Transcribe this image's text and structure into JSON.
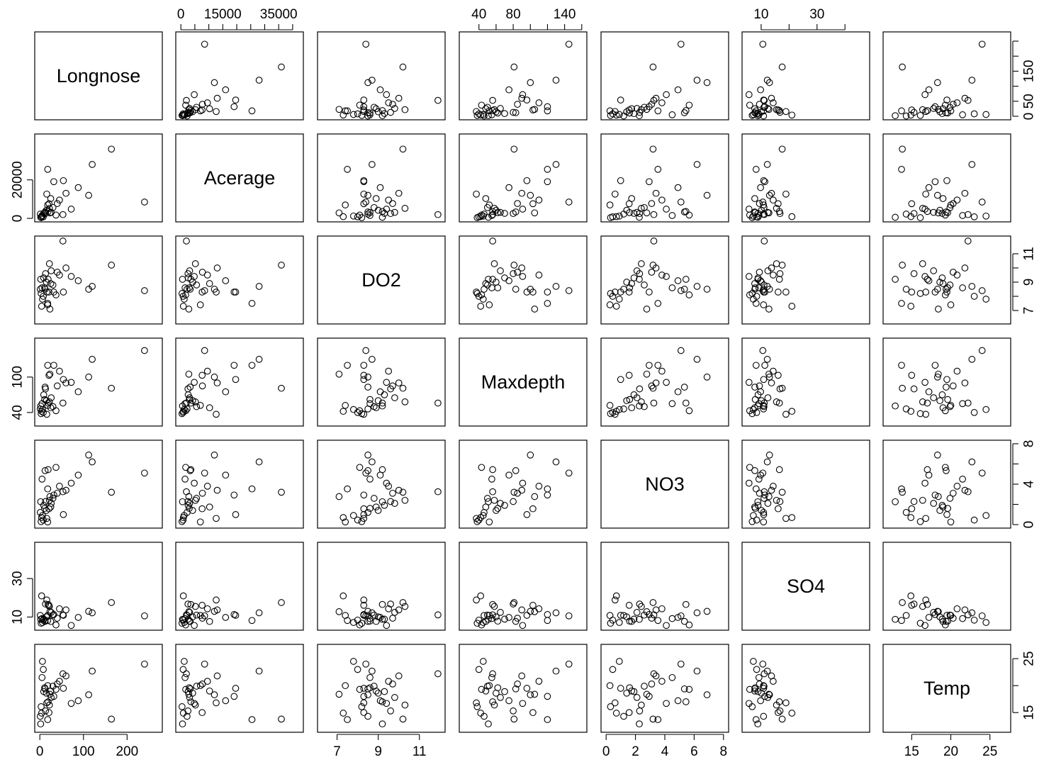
{
  "chart_data": {
    "type": "scatter",
    "variables": [
      "Longnose",
      "Acerage",
      "DO2",
      "Maxdepth",
      "NO3",
      "SO4",
      "Temp"
    ],
    "ranges": {
      "Longnose": [
        0,
        269
      ],
      "Acerage": [
        0,
        42000
      ],
      "DO2": [
        6.3,
        12.0
      ],
      "Maxdepth": [
        23,
        160
      ],
      "NO3": [
        0,
        8
      ],
      "SO4": [
        5,
        47
      ],
      "Temp": [
        12,
        27
      ]
    },
    "ticks": {
      "Longnose": [
        0,
        100,
        200
      ],
      "Acerage": [
        0,
        20000
      ],
      "DO2": [
        7,
        9,
        11
      ],
      "Maxdepth": [
        40,
        100
      ],
      "NO3": [
        0,
        2,
        4,
        6,
        8
      ],
      "SO4": [
        10,
        30
      ],
      "Temp": [
        15,
        20,
        25
      ]
    },
    "top_ticks": {
      "Acerage": {
        "labels": [
          "0",
          "15000",
          "35000"
        ],
        "values": [
          0,
          15000,
          35000
        ],
        "minor": [
          5000,
          10000,
          20000,
          25000,
          30000,
          40000
        ]
      },
      "Maxdepth": {
        "labels": [
          "40",
          "80",
          "140"
        ],
        "values": [
          40,
          80,
          140
        ],
        "minor": [
          60,
          100,
          120,
          160
        ]
      },
      "SO4": {
        "labels": [
          "10",
          "30"
        ],
        "values": [
          10,
          30
        ],
        "minor": [
          20,
          40
        ]
      }
    },
    "tick_label_text": {
      "bottom": {
        "Longnose": [
          "0",
          "100",
          "200"
        ],
        "DO2": [
          "7",
          "9",
          "11"
        ],
        "NO3": [
          "0",
          "2",
          "4",
          "6",
          "8"
        ],
        "Temp": [
          "15",
          "20",
          "25"
        ]
      },
      "left": {
        "Acerage": [
          "0",
          "20000"
        ],
        "Maxdepth": [
          "40",
          "100"
        ],
        "SO4": [
          "10",
          "30"
        ]
      },
      "right": {
        "Longnose": [
          "0",
          "50",
          "150"
        ],
        "DO2": [
          "7",
          "9",
          "11"
        ],
        "NO3": [
          "0",
          "4",
          "8"
        ],
        "Temp": [
          "15",
          "25"
        ]
      }
    },
    "observations": [
      [
        13,
        2528,
        9.6,
        80,
        2.28,
        16.75,
        15.3
      ],
      [
        12,
        3333,
        8.5,
        83,
        5.34,
        7.74,
        19.4
      ],
      [
        54,
        19611,
        8.3,
        96,
        0.99,
        10.92,
        19.5
      ],
      [
        19,
        3570,
        9.2,
        56,
        5.44,
        16.53,
        17.0
      ],
      [
        37,
        1722,
        8.1,
        43,
        5.66,
        5.91,
        19.3
      ],
      [
        2,
        583,
        9.2,
        51,
        2.26,
        8.81,
        12.9
      ],
      [
        72,
        4790,
        9.4,
        91,
        4.1,
        5.65,
        16.7
      ],
      [
        164,
        35971,
        10.2,
        81,
        3.2,
        17.53,
        13.8
      ],
      [
        18,
        25440,
        7.5,
        120,
        3.53,
        8.2,
        13.7
      ],
      [
        1,
        2217,
        8.5,
        46,
        1.2,
        10.85,
        14.3
      ],
      [
        53,
        1971,
        11.9,
        56,
        3.25,
        11.12,
        22.2
      ],
      [
        16,
        12620,
        8.3,
        37,
        0.61,
        18.87,
        16.8
      ],
      [
        32,
        19046,
        8.3,
        120,
        2.93,
        11.31,
        18.0
      ],
      [
        21,
        7612,
        8.3,
        103,
        1.57,
        16.09,
        15.0
      ],
      [
        23,
        2833,
        7.1,
        105,
        2.77,
        12.79,
        18.4
      ],
      [
        18,
        6983,
        7.4,
        52,
        0.26,
        10.85,
        20.0
      ],
      [
        112,
        11988,
        8.5,
        100,
        6.88,
        12.98,
        18.3
      ],
      [
        25,
        10280,
        8.9,
        48,
        1.74,
        7.71,
        19.0
      ],
      [
        5,
        1500,
        8.6,
        55,
        4.5,
        9.2,
        21.5
      ],
      [
        26,
        3120,
        9.8,
        65,
        2.1,
        12.4,
        17.8
      ],
      [
        8,
        800,
        8.0,
        40,
        0.45,
        8.4,
        23.0
      ],
      [
        15,
        4200,
        9.0,
        60,
        1.4,
        10.1,
        18.6
      ],
      [
        45,
        9500,
        9.5,
        110,
        3.8,
        14.3,
        20.8
      ],
      [
        88,
        16000,
        9.1,
        75,
        4.9,
        9.8,
        17.2
      ],
      [
        30,
        5600,
        8.8,
        50,
        2.6,
        11.0,
        19.9
      ],
      [
        6,
        1200,
        7.8,
        45,
        0.9,
        7.2,
        24.5
      ],
      [
        240,
        8500,
        8.4,
        145,
        5.1,
        10.6,
        24.0
      ],
      [
        3,
        400,
        8.2,
        38,
        0.3,
        6.8,
        16.1
      ],
      [
        60,
        13000,
        10.0,
        90,
        3.4,
        13.7,
        21.8
      ],
      [
        9,
        2600,
        9.3,
        70,
        1.9,
        8.9,
        18.9
      ],
      [
        120,
        28000,
        8.7,
        130,
        6.2,
        12.2,
        22.7
      ],
      [
        22,
        5200,
        10.3,
        58,
        2.4,
        15.5,
        16.4
      ],
      [
        4,
        900,
        7.3,
        42,
        0.7,
        21.0,
        14.9
      ],
      [
        40,
        7700,
        9.7,
        85,
        3.1,
        9.4,
        20.3
      ],
      [
        11,
        3000,
        8.6,
        62,
        1.6,
        7.9,
        19.6
      ]
    ]
  }
}
